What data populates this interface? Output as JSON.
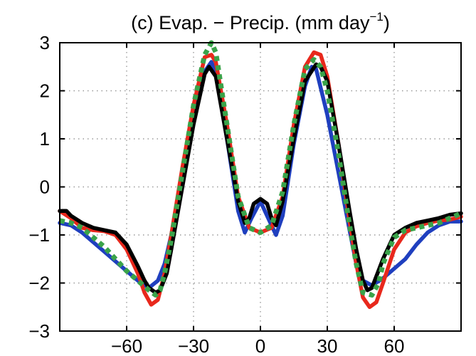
{
  "chart_data": {
    "type": "line",
    "title": {
      "main": "(c) Evap. − Precip. (mm day",
      "sup": "−1",
      "close": ")"
    },
    "xlabel": "",
    "ylabel": "",
    "xlim": [
      -90,
      90
    ],
    "ylim": [
      -3,
      3
    ],
    "x_ticks": [
      -60,
      -30,
      0,
      30,
      60
    ],
    "x_tick_labels": [
      "−60",
      "−30",
      "0",
      "30",
      "60"
    ],
    "y_ticks": [
      3,
      2,
      1,
      0,
      -1,
      -2,
      -3
    ],
    "y_tick_labels": [
      "3",
      "2",
      "1",
      "0",
      "−1",
      "−2",
      "−3"
    ],
    "grid": true,
    "series": [
      {
        "color": "#1f3fbf",
        "style": "solid",
        "x": [
          -90,
          -85,
          -80,
          -75,
          -70,
          -65,
          -60,
          -55,
          -50,
          -46,
          -43,
          -40,
          -35,
          -30,
          -25,
          -22,
          -20,
          -15,
          -10,
          -7,
          -4,
          0,
          4,
          7,
          10,
          15,
          20,
          23,
          25,
          30,
          35,
          40,
          43,
          46,
          50,
          55,
          60,
          65,
          70,
          75,
          80,
          85,
          90
        ],
        "y": [
          -0.75,
          -0.8,
          -0.95,
          -1.15,
          -1.35,
          -1.55,
          -1.75,
          -1.95,
          -2.1,
          -1.95,
          -1.6,
          -1.0,
          0.2,
          1.4,
          2.4,
          2.6,
          2.4,
          1.0,
          -0.5,
          -0.95,
          -0.65,
          -0.3,
          -0.7,
          -1.0,
          -0.6,
          0.9,
          2.1,
          2.5,
          2.45,
          1.5,
          0.3,
          -0.9,
          -1.6,
          -1.95,
          -2.05,
          -1.9,
          -1.7,
          -1.5,
          -1.2,
          -0.95,
          -0.8,
          -0.72,
          -0.72
        ]
      },
      {
        "color": "#e8281c",
        "style": "solid",
        "x": [
          -90,
          -85,
          -80,
          -75,
          -70,
          -65,
          -60,
          -55,
          -52,
          -49,
          -46,
          -43,
          -40,
          -35,
          -30,
          -25,
          -22,
          -20,
          -15,
          -10,
          -5,
          0,
          5,
          10,
          15,
          20,
          24,
          27,
          30,
          35,
          40,
          43,
          46,
          49,
          52,
          55,
          60,
          65,
          70,
          75,
          80,
          85,
          90
        ],
        "y": [
          -0.5,
          -0.65,
          -0.85,
          -0.9,
          -0.92,
          -1.0,
          -1.3,
          -1.8,
          -2.2,
          -2.45,
          -2.35,
          -1.8,
          -1.0,
          0.4,
          1.7,
          2.7,
          2.75,
          2.6,
          1.3,
          -0.2,
          -0.85,
          -0.95,
          -0.85,
          -0.2,
          1.3,
          2.5,
          2.8,
          2.75,
          2.3,
          0.9,
          -0.7,
          -1.6,
          -2.3,
          -2.5,
          -2.4,
          -2.0,
          -1.3,
          -0.95,
          -0.82,
          -0.75,
          -0.7,
          -0.68,
          -0.62
        ]
      },
      {
        "color": "#000000",
        "style": "solid",
        "x": [
          -90,
          -87,
          -85,
          -80,
          -75,
          -70,
          -65,
          -60,
          -55,
          -52,
          -50,
          -47,
          -45,
          -42,
          -40,
          -35,
          -30,
          -25,
          -23,
          -20,
          -15,
          -10,
          -7,
          -5,
          -3,
          0,
          3,
          5,
          7,
          10,
          15,
          20,
          25,
          27,
          30,
          35,
          40,
          43,
          46,
          48,
          50,
          55,
          60,
          65,
          70,
          75,
          80,
          85,
          90
        ],
        "y": [
          -0.5,
          -0.5,
          -0.6,
          -0.75,
          -0.85,
          -0.9,
          -0.95,
          -1.2,
          -1.65,
          -1.95,
          -2.1,
          -2.2,
          -2.15,
          -1.8,
          -1.3,
          0.0,
          1.3,
          2.35,
          2.5,
          2.3,
          1.0,
          -0.3,
          -0.75,
          -0.65,
          -0.35,
          -0.25,
          -0.35,
          -0.65,
          -0.8,
          -0.3,
          1.0,
          2.2,
          2.55,
          2.5,
          2.2,
          0.9,
          -0.5,
          -1.3,
          -1.95,
          -2.15,
          -2.1,
          -1.5,
          -1.0,
          -0.85,
          -0.75,
          -0.7,
          -0.65,
          -0.58,
          -0.55
        ]
      },
      {
        "color": "#3aa34a",
        "style": "dashed",
        "x": [
          -90,
          -85,
          -80,
          -75,
          -70,
          -65,
          -60,
          -55,
          -50,
          -47,
          -45,
          -43,
          -40,
          -35,
          -30,
          -25,
          -22,
          -20,
          -15,
          -10,
          -5,
          0,
          5,
          10,
          15,
          20,
          24,
          27,
          30,
          35,
          40,
          43,
          46,
          50,
          53,
          55,
          60,
          65,
          70,
          75,
          80,
          85,
          90
        ],
        "y": [
          -0.7,
          -0.75,
          -0.85,
          -1.05,
          -1.25,
          -1.5,
          -1.75,
          -1.95,
          -2.15,
          -2.25,
          -2.15,
          -1.8,
          -1.1,
          0.3,
          1.7,
          2.75,
          3.0,
          2.8,
          1.3,
          -0.2,
          -0.85,
          -0.95,
          -0.8,
          -0.1,
          1.3,
          2.45,
          2.65,
          2.5,
          2.0,
          0.7,
          -0.8,
          -1.6,
          -2.2,
          -2.25,
          -2.0,
          -1.6,
          -1.05,
          -0.9,
          -0.85,
          -0.8,
          -0.75,
          -0.65,
          -0.55
        ]
      }
    ]
  }
}
